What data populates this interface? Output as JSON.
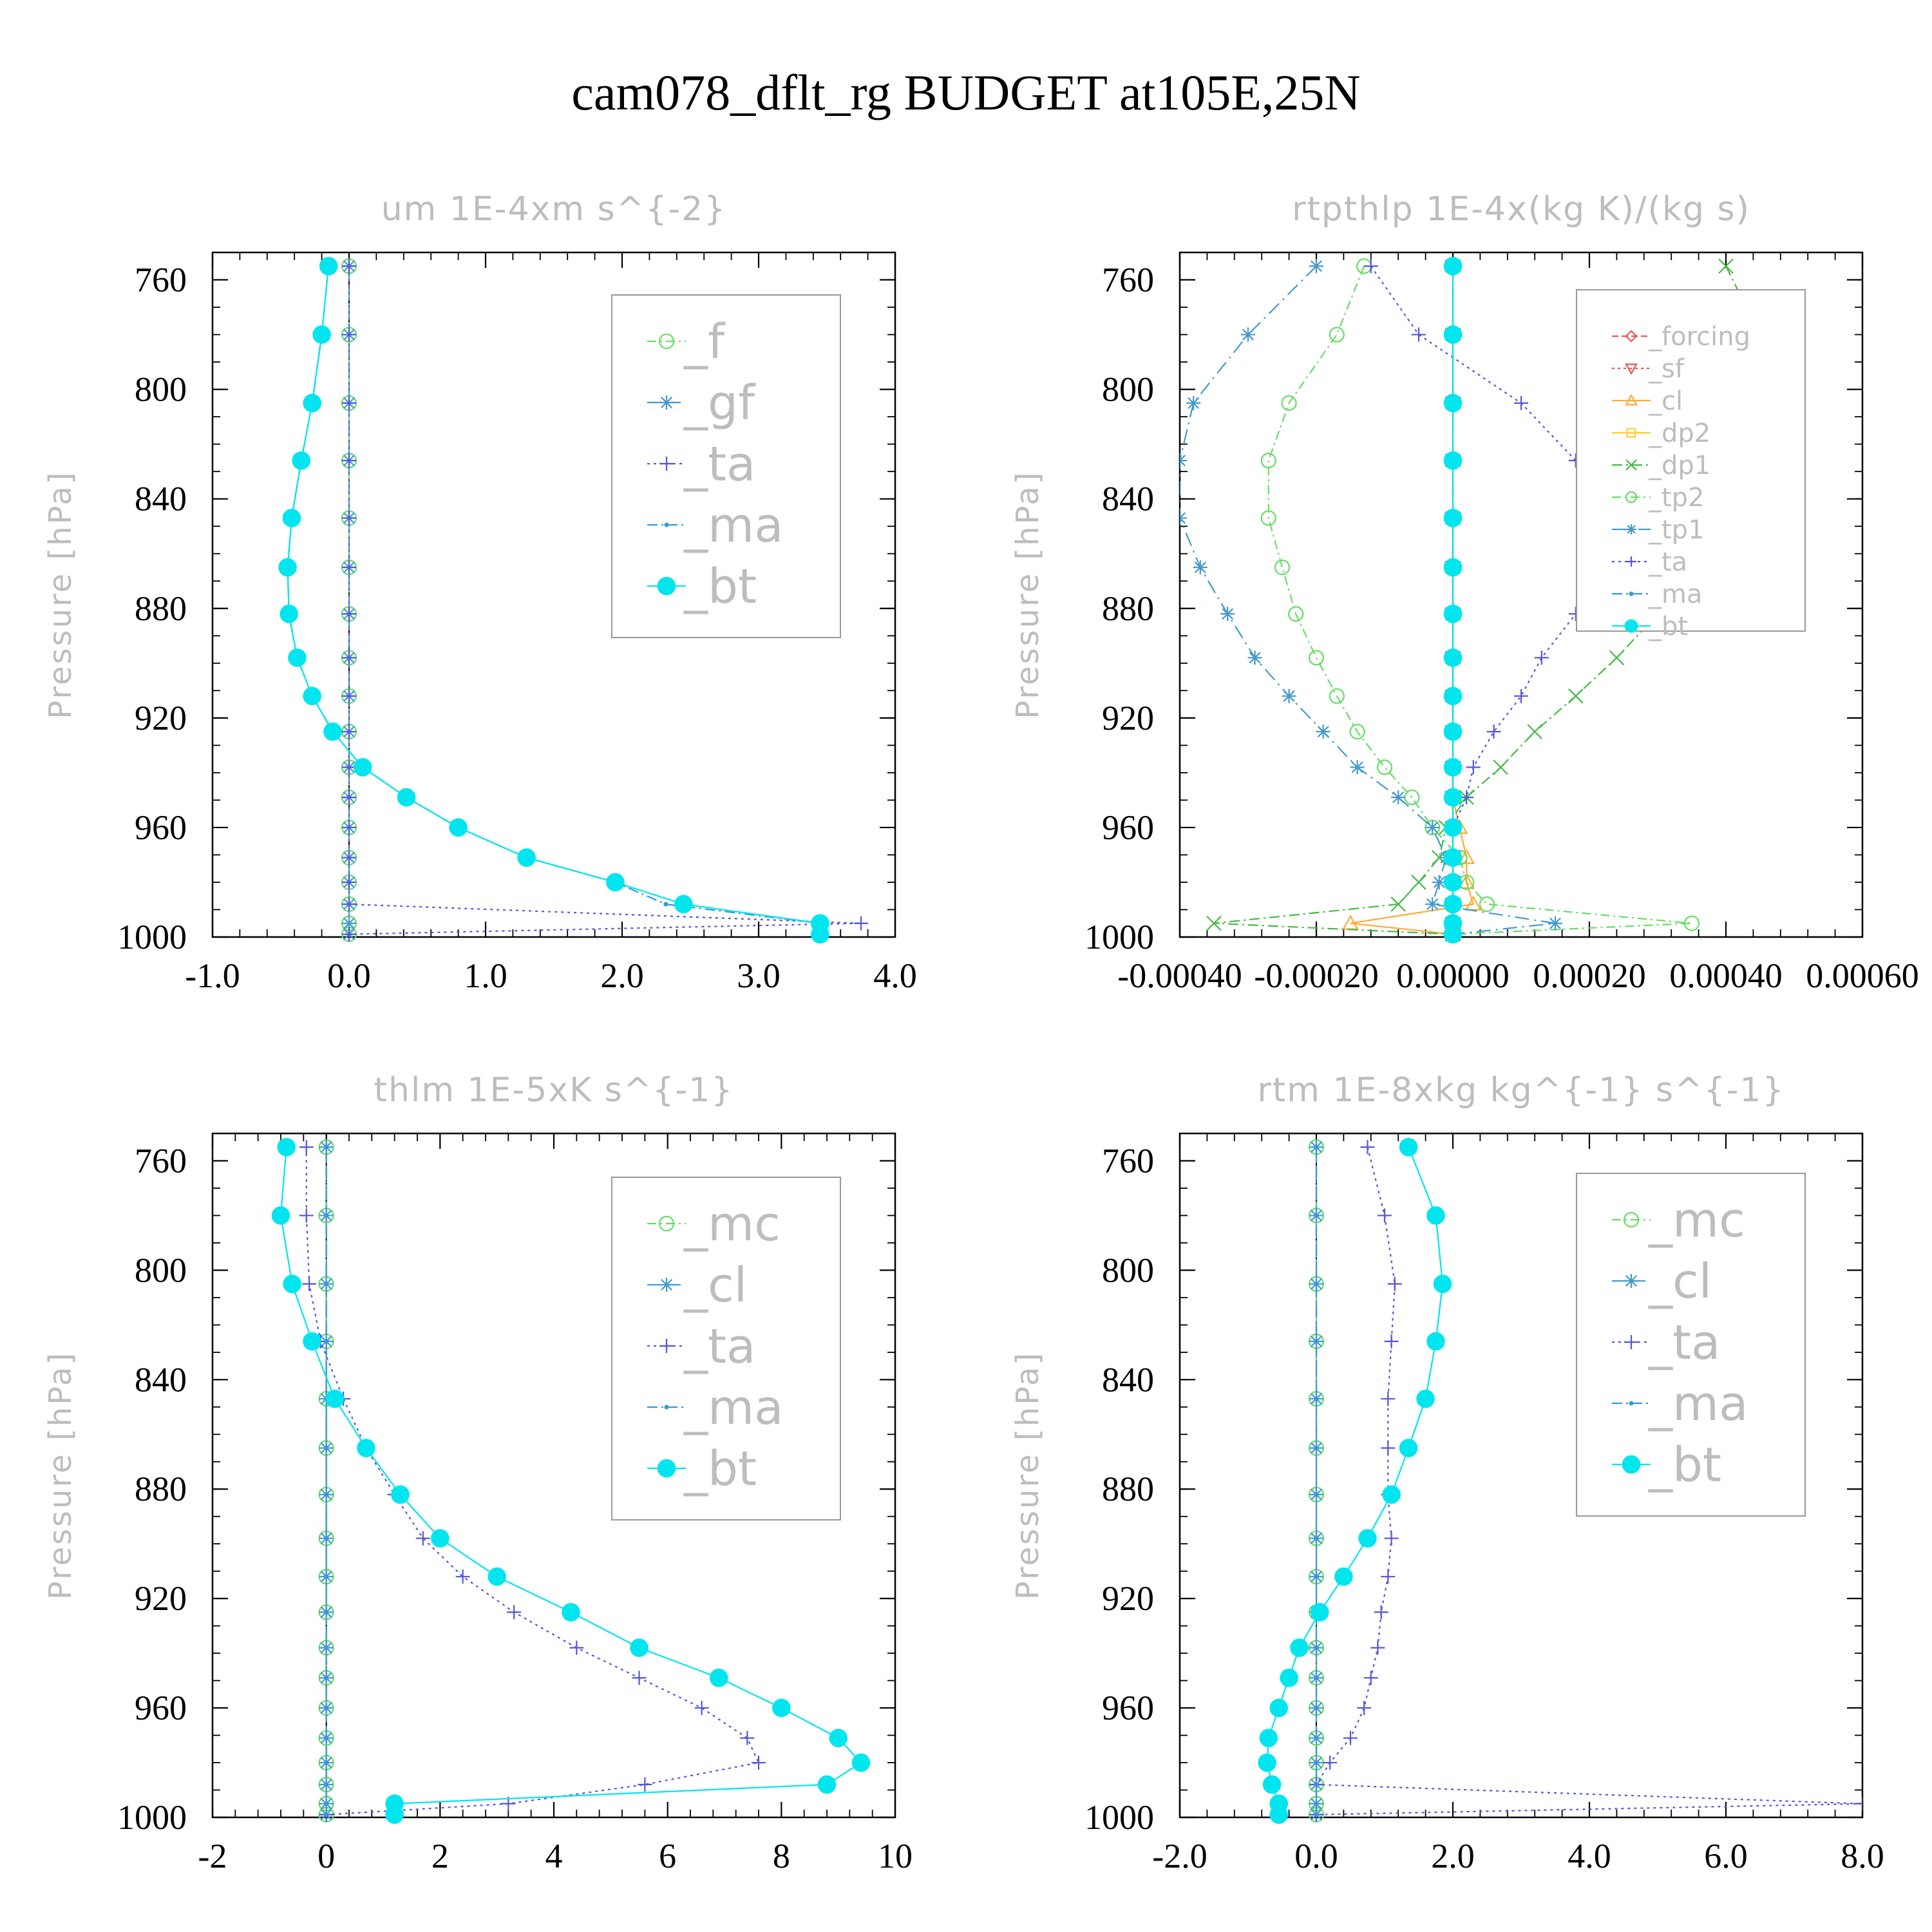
{
  "figure_title": "cam078_dflt_rg  BUDGET at105E,25N",
  "chart_data": [
    {
      "type": "line",
      "title": "um   1E-4xm s^{-2}",
      "ylabel": "Pressure [hPa]",
      "xlim": [
        -1.0,
        4.0
      ],
      "ylim": [
        750,
        1000
      ],
      "y_inverted": true,
      "xticks": [
        -1.0,
        0.0,
        1.0,
        2.0,
        3.0,
        4.0
      ],
      "xtick_labels": [
        "-1.0",
        "0.0",
        "1.0",
        "2.0",
        "3.0",
        "4.0"
      ],
      "yticks": [
        760,
        800,
        840,
        880,
        920,
        960,
        1000
      ],
      "ytick_labels": [
        "760",
        "800",
        "840",
        "880",
        "920",
        "960",
        "1000"
      ],
      "legend_position": "top-right",
      "levels": [
        755,
        780,
        805,
        826,
        847,
        865,
        882,
        898,
        912,
        925,
        938,
        949,
        960,
        971,
        980,
        988,
        995,
        999
      ],
      "series": [
        {
          "name": "_f",
          "color": "#66dd66",
          "marker": "circle",
          "dash": "14,6,3,6",
          "values": [
            0,
            0,
            0,
            0,
            0,
            0,
            0,
            0,
            0,
            0,
            0,
            0,
            0,
            0,
            0,
            0,
            0,
            0
          ]
        },
        {
          "name": "_gf",
          "color": "#4499cc",
          "marker": "asterisk",
          "dash": "22,8",
          "values": [
            0,
            0,
            0,
            0,
            0,
            0,
            0,
            0,
            0,
            0,
            0,
            0,
            0,
            0,
            0,
            0,
            0,
            0
          ]
        },
        {
          "name": "_ta",
          "color": "#5555dd",
          "marker": "plus",
          "dash": "4,6",
          "values": [
            0,
            0,
            0,
            0,
            0,
            0,
            0,
            0,
            0,
            0,
            0,
            0,
            0,
            0,
            0,
            0,
            3.75,
            0
          ]
        },
        {
          "name": "_ma",
          "color": "#3399dd",
          "marker": "dot",
          "dash": "16,6,3,6",
          "values": [
            -0.15,
            -0.2,
            -0.27,
            -0.35,
            -0.42,
            -0.45,
            -0.44,
            -0.38,
            -0.27,
            -0.12,
            0.1,
            0.42,
            0.8,
            1.3,
            1.95,
            2.32,
            3.45,
            3.45
          ]
        },
        {
          "name": "_bt",
          "color": "#00e5ee",
          "marker": "filled-circle",
          "dash": "",
          "values": [
            -0.15,
            -0.2,
            -0.27,
            -0.35,
            -0.42,
            -0.45,
            -0.44,
            -0.38,
            -0.27,
            -0.12,
            0.1,
            0.42,
            0.8,
            1.3,
            1.95,
            2.45,
            3.45,
            3.45
          ]
        }
      ]
    },
    {
      "type": "line",
      "title": "rtpthlp   1E-4x(kg K)/(kg s)",
      "ylabel": "Pressure [hPa]",
      "xlim": [
        -0.0004,
        0.0006
      ],
      "ylim": [
        750,
        1000
      ],
      "y_inverted": true,
      "xticks": [
        -0.0004,
        -0.0002,
        0.0,
        0.0002,
        0.0004,
        0.0006
      ],
      "xtick_labels": [
        "-0.00040",
        "-0.00020",
        "0.00000",
        "0.00020",
        "0.00040",
        "0.00060"
      ],
      "yticks": [
        760,
        800,
        840,
        880,
        920,
        960,
        1000
      ],
      "ytick_labels": [
        "760",
        "800",
        "840",
        "880",
        "920",
        "960",
        "1000"
      ],
      "legend_position": "top-right",
      "levels": [
        755,
        780,
        805,
        826,
        847,
        865,
        882,
        898,
        912,
        925,
        938,
        949,
        960,
        971,
        980,
        988,
        995,
        999
      ],
      "series": [
        {
          "name": "_forcing",
          "color": "#ee5555",
          "marker": "diamond",
          "dash": "10,5",
          "values": [
            0,
            0,
            0,
            0,
            0,
            0,
            0,
            0,
            0,
            0,
            0,
            0,
            0,
            0,
            0,
            0,
            0,
            0
          ]
        },
        {
          "name": "_sf",
          "color": "#ee5555",
          "marker": "tri-down",
          "dash": "4,5",
          "values": [
            0,
            0,
            0,
            0,
            0,
            0,
            0,
            0,
            0,
            0,
            0,
            0,
            0,
            0,
            0,
            0,
            0,
            0
          ]
        },
        {
          "name": "_cl",
          "color": "#ffaa33",
          "marker": "tri-up",
          "dash": "",
          "values": [
            0,
            0,
            0,
            0,
            0,
            0,
            0,
            0,
            0,
            0,
            0,
            0,
            1e-05,
            2e-05,
            2e-05,
            3e-05,
            -0.00015,
            0
          ]
        },
        {
          "name": "_dp2",
          "color": "#ffcc33",
          "marker": "square",
          "dash": "",
          "values": [
            0,
            0,
            0,
            0,
            0,
            0,
            0,
            0,
            0,
            0,
            0,
            0,
            0,
            0,
            0,
            0,
            0,
            0
          ]
        },
        {
          "name": "_dp1",
          "color": "#44bb44",
          "marker": "x",
          "dash": "16,6,3,6",
          "values": [
            0.0004,
            0.00045,
            0.0005,
            0.00045,
            0.0004,
            0.00035,
            0.0003,
            0.00024,
            0.00018,
            0.00012,
            7e-05,
            2e-05,
            -1e-05,
            -2e-05,
            -5e-05,
            -8e-05,
            -0.00035,
            0
          ]
        },
        {
          "name": "_tp2",
          "color": "#66dd66",
          "marker": "circle",
          "dash": "14,6,3,6",
          "values": [
            -0.00013,
            -0.00017,
            -0.00024,
            -0.00027,
            -0.00027,
            -0.00025,
            -0.00023,
            -0.0002,
            -0.00017,
            -0.00014,
            -0.0001,
            -6e-05,
            -3e-05,
            1e-05,
            2e-05,
            5e-05,
            0.00035,
            0
          ]
        },
        {
          "name": "_tp1",
          "color": "#4499cc",
          "marker": "asterisk",
          "dash": "22,8,3,8",
          "values": [
            -0.0002,
            -0.0003,
            -0.00038,
            -0.0004,
            -0.0004,
            -0.00037,
            -0.00033,
            -0.00029,
            -0.00024,
            -0.00019,
            -0.00014,
            -8e-05,
            -3e-05,
            -1e-05,
            -2e-05,
            -3e-05,
            0.00015,
            0
          ]
        },
        {
          "name": "_ta",
          "color": "#5555dd",
          "marker": "plus",
          "dash": "4,6",
          "values": [
            -0.00012,
            -5e-05,
            0.0001,
            0.00018,
            0.00022,
            0.00022,
            0.00018,
            0.00013,
            0.0001,
            6e-05,
            3e-05,
            2e-05,
            0,
            0,
            0,
            0,
            0,
            0
          ]
        },
        {
          "name": "_ma",
          "color": "#3399dd",
          "marker": "dot",
          "dash": "16,6,3,6",
          "values": [
            0,
            0,
            0,
            0,
            0,
            0,
            0,
            0,
            0,
            0,
            0,
            0,
            0,
            0,
            0,
            0,
            0,
            0
          ]
        },
        {
          "name": "_bt",
          "color": "#00e5ee",
          "marker": "filled-circle",
          "dash": "",
          "values": [
            0,
            0,
            0,
            0,
            0,
            0,
            0,
            0,
            0,
            0,
            0,
            0,
            0,
            0,
            0,
            0,
            0,
            0
          ]
        }
      ]
    },
    {
      "type": "line",
      "title": "thlm   1E-5xK s^{-1}",
      "ylabel": "Pressure [hPa]",
      "xlim": [
        -2,
        10
      ],
      "ylim": [
        750,
        1000
      ],
      "y_inverted": true,
      "xticks": [
        -2,
        0,
        2,
        4,
        6,
        8,
        10
      ],
      "xtick_labels": [
        "-2",
        "0",
        "2",
        "4",
        "6",
        "8",
        "10"
      ],
      "yticks": [
        760,
        800,
        840,
        880,
        920,
        960,
        1000
      ],
      "ytick_labels": [
        "760",
        "800",
        "840",
        "880",
        "920",
        "960",
        "1000"
      ],
      "legend_position": "top-right",
      "levels": [
        755,
        780,
        805,
        826,
        847,
        865,
        882,
        898,
        912,
        925,
        938,
        949,
        960,
        971,
        980,
        988,
        995,
        999
      ],
      "series": [
        {
          "name": "_mc",
          "color": "#66dd66",
          "marker": "circle",
          "dash": "14,6,3,6",
          "values": [
            0,
            0,
            0,
            0,
            0,
            0,
            0,
            0,
            0,
            0,
            0,
            0,
            0,
            0,
            0,
            0,
            0,
            0
          ]
        },
        {
          "name": "_cl",
          "color": "#4499cc",
          "marker": "asterisk",
          "dash": "22,8",
          "values": [
            0,
            0,
            0,
            0,
            0,
            0,
            0,
            0,
            0,
            0,
            0,
            0,
            0,
            0,
            0,
            0,
            0,
            0
          ]
        },
        {
          "name": "_ta",
          "color": "#5555dd",
          "marker": "plus",
          "dash": "4,6",
          "values": [
            -0.35,
            -0.35,
            -0.3,
            -0.1,
            0.3,
            0.7,
            1.2,
            1.7,
            2.4,
            3.3,
            4.4,
            5.5,
            6.6,
            7.4,
            7.6,
            5.6,
            3.2,
            0
          ]
        },
        {
          "name": "_ma",
          "color": "#3399dd",
          "marker": "dot",
          "dash": "16,6,3,6",
          "values": [
            0,
            0,
            0,
            0,
            0,
            0,
            0,
            0,
            0,
            0,
            0,
            0,
            0,
            0,
            0,
            0,
            0,
            0
          ]
        },
        {
          "name": "_bt",
          "color": "#00e5ee",
          "marker": "filled-circle",
          "dash": "",
          "values": [
            -0.7,
            -0.8,
            -0.6,
            -0.25,
            0.15,
            0.7,
            1.3,
            2.0,
            3.0,
            4.3,
            5.5,
            6.9,
            8.0,
            9.0,
            9.4,
            8.8,
            1.2,
            1.2
          ]
        }
      ]
    },
    {
      "type": "line",
      "title": "rtm   1E-8xkg kg^{-1} s^{-1}",
      "ylabel": "Pressure [hPa]",
      "xlim": [
        -2.0,
        8.0
      ],
      "ylim": [
        750,
        1000
      ],
      "y_inverted": true,
      "xticks": [
        -2.0,
        0.0,
        2.0,
        4.0,
        6.0,
        8.0
      ],
      "xtick_labels": [
        "-2.0",
        "0.0",
        "2.0",
        "4.0",
        "6.0",
        "8.0"
      ],
      "yticks": [
        760,
        800,
        840,
        880,
        920,
        960,
        1000
      ],
      "ytick_labels": [
        "760",
        "800",
        "840",
        "880",
        "920",
        "960",
        "1000"
      ],
      "legend_position": "top-right",
      "levels": [
        755,
        780,
        805,
        826,
        847,
        865,
        882,
        898,
        912,
        925,
        938,
        949,
        960,
        971,
        980,
        988,
        995,
        999
      ],
      "series": [
        {
          "name": "_mc",
          "color": "#66dd66",
          "marker": "circle",
          "dash": "14,6,3,6",
          "values": [
            0,
            0,
            0,
            0,
            0,
            0,
            0,
            0,
            0,
            0,
            0,
            0,
            0,
            0,
            0,
            0,
            0,
            0
          ]
        },
        {
          "name": "_cl",
          "color": "#4499cc",
          "marker": "asterisk",
          "dash": "22,8",
          "values": [
            0,
            0,
            0,
            0,
            0,
            0,
            0,
            0,
            0,
            0,
            0,
            0,
            0,
            0,
            0,
            0,
            0,
            0
          ]
        },
        {
          "name": "_ta",
          "color": "#5555dd",
          "marker": "plus",
          "dash": "4,6",
          "values": [
            0.75,
            1.0,
            1.15,
            1.1,
            1.05,
            1.05,
            1.05,
            1.1,
            1.05,
            0.95,
            0.9,
            0.8,
            0.7,
            0.5,
            0.2,
            0,
            8.0,
            0
          ]
        },
        {
          "name": "_ma",
          "color": "#3399dd",
          "marker": "dot",
          "dash": "16,6,3,6",
          "values": [
            0,
            0,
            0,
            0,
            0,
            0,
            0,
            0,
            0,
            0,
            0,
            0,
            0,
            0,
            0,
            0,
            0,
            0
          ]
        },
        {
          "name": "_bt",
          "color": "#00e5ee",
          "marker": "filled-circle",
          "dash": "",
          "values": [
            1.35,
            1.75,
            1.85,
            1.75,
            1.6,
            1.35,
            1.1,
            0.75,
            0.4,
            0.05,
            -0.25,
            -0.4,
            -0.55,
            -0.7,
            -0.72,
            -0.65,
            -0.55,
            -0.55
          ]
        }
      ]
    }
  ]
}
